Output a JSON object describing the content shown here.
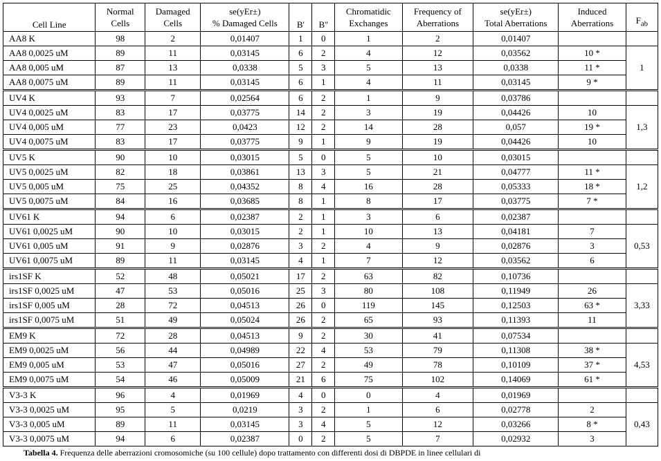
{
  "columns": {
    "cell_line": "Cell  Line",
    "normal": "Normal\nCells",
    "damaged": "Damaged\nCells",
    "se_damaged": "se(yEr±)\n% Damaged Cells",
    "bprime": "B'",
    "bdprime": "B''",
    "chrom_ex": "Chromatidic\nExchanges",
    "freq_ab": "Frequency of\nAberrations",
    "se_total": "se(yEr±)\nTotal Aberrations",
    "induced": "Induced\nAberrations",
    "fab": "Fab"
  },
  "col_widths": {
    "cell_line": 130,
    "normal": 70,
    "damaged": 78,
    "se_damaged": 125,
    "bprime": 32,
    "bdprime": 32,
    "chrom_ex": 95,
    "freq_ab": 100,
    "se_total": 120,
    "induced": 95,
    "fab": 45
  },
  "groups": [
    {
      "fab": "1",
      "rows": [
        {
          "cl": "AA8 K",
          "n": "98",
          "d": "2",
          "se": "0,01407",
          "b1": "1",
          "b2": "0",
          "cx": "1",
          "fa": "2",
          "st": "0,01407",
          "ia": ""
        },
        {
          "cl": "AA8 0,0025 uM",
          "n": "89",
          "d": "11",
          "se": "0,03145",
          "b1": "6",
          "b2": "2",
          "cx": "4",
          "fa": "12",
          "st": "0,03562",
          "ia": "10 *"
        },
        {
          "cl": "AA8 0,005 uM",
          "n": "87",
          "d": "13",
          "se": "0,0338",
          "b1": "5",
          "b2": "3",
          "cx": "5",
          "fa": "13",
          "st": "0,0338",
          "ia": "11 *"
        },
        {
          "cl": "AA8 0,0075 uM",
          "n": "89",
          "d": "11",
          "se": "0,03145",
          "b1": "6",
          "b2": "1",
          "cx": "4",
          "fa": "11",
          "st": "0,03145",
          "ia": "9 *"
        }
      ]
    },
    {
      "fab": "1,3",
      "rows": [
        {
          "cl": "UV4 K",
          "n": "93",
          "d": "7",
          "se": "0,02564",
          "b1": "6",
          "b2": "2",
          "cx": "1",
          "fa": "9",
          "st": "0,03786",
          "ia": ""
        },
        {
          "cl": "UV4 0,0025 uM",
          "n": "83",
          "d": "17",
          "se": "0,03775",
          "b1": "14",
          "b2": "2",
          "cx": "3",
          "fa": "19",
          "st": "0,04426",
          "ia": "10"
        },
        {
          "cl": "UV4 0,005 uM",
          "n": "77",
          "d": "23",
          "se": "0,0423",
          "b1": "12",
          "b2": "2",
          "cx": "14",
          "fa": "28",
          "st": "0,057",
          "ia": "19 *"
        },
        {
          "cl": "UV4 0,0075 uM",
          "n": "83",
          "d": "17",
          "se": "0,03775",
          "b1": "9",
          "b2": "1",
          "cx": "9",
          "fa": "19",
          "st": "0,04426",
          "ia": "10"
        }
      ]
    },
    {
      "fab": "1,2",
      "rows": [
        {
          "cl": "UV5 K",
          "n": "90",
          "d": "10",
          "se": "0,03015",
          "b1": "5",
          "b2": "0",
          "cx": "5",
          "fa": "10",
          "st": "0,03015",
          "ia": ""
        },
        {
          "cl": "UV5 0,0025 uM",
          "n": "82",
          "d": "18",
          "se": "0,03861",
          "b1": "13",
          "b2": "3",
          "cx": "5",
          "fa": "21",
          "st": "0,04777",
          "ia": "11 *"
        },
        {
          "cl": "UV5 0,005 uM",
          "n": "75",
          "d": "25",
          "se": "0,04352",
          "b1": "8",
          "b2": "4",
          "cx": "16",
          "fa": "28",
          "st": "0,05333",
          "ia": "18 *"
        },
        {
          "cl": "UV5 0,0075 uM",
          "n": "84",
          "d": "16",
          "se": "0,03685",
          "b1": "8",
          "b2": "1",
          "cx": "8",
          "fa": "17",
          "st": "0,03775",
          "ia": "7 *"
        }
      ]
    },
    {
      "fab": "0,53",
      "rows": [
        {
          "cl": "UV61 K",
          "n": "94",
          "d": "6",
          "se": "0,02387",
          "b1": "2",
          "b2": "1",
          "cx": "3",
          "fa": "6",
          "st": "0,02387",
          "ia": ""
        },
        {
          "cl": "UV61 0,0025 uM",
          "n": "90",
          "d": "10",
          "se": "0,03015",
          "b1": "2",
          "b2": "1",
          "cx": "10",
          "fa": "13",
          "st": "0,04181",
          "ia": "7"
        },
        {
          "cl": "UV61 0,005 uM",
          "n": "91",
          "d": "9",
          "se": "0,02876",
          "b1": "3",
          "b2": "2",
          "cx": "4",
          "fa": "9",
          "st": "0,02876",
          "ia": "3"
        },
        {
          "cl": "UV61 0,0075 uM",
          "n": "89",
          "d": "11",
          "se": "0,03145",
          "b1": "4",
          "b2": "1",
          "cx": "7",
          "fa": "12",
          "st": "0,03562",
          "ia": "6"
        }
      ]
    },
    {
      "fab": "3,33",
      "rows": [
        {
          "cl": "irs1SF K",
          "n": "52",
          "d": "48",
          "se": "0,05021",
          "b1": "17",
          "b2": "2",
          "cx": "63",
          "fa": "82",
          "st": "0,10736",
          "ia": ""
        },
        {
          "cl": "irs1SF 0,0025 uM",
          "n": "47",
          "d": "53",
          "se": "0,05016",
          "b1": "25",
          "b2": "3",
          "cx": "80",
          "fa": "108",
          "st": "0,11949",
          "ia": "26"
        },
        {
          "cl": "irs1SF 0,005 uM",
          "n": "28",
          "d": "72",
          "se": "0,04513",
          "b1": "26",
          "b2": "0",
          "cx": "119",
          "fa": "145",
          "st": "0,12503",
          "ia": "63 *"
        },
        {
          "cl": "irs1SF 0,0075 uM",
          "n": "51",
          "d": "49",
          "se": "0,05024",
          "b1": "26",
          "b2": "2",
          "cx": "65",
          "fa": "93",
          "st": "0,11393",
          "ia": "11"
        }
      ]
    },
    {
      "fab": "4,53",
      "rows": [
        {
          "cl": "EM9 K",
          "n": "72",
          "d": "28",
          "se": "0,04513",
          "b1": "9",
          "b2": "2",
          "cx": "30",
          "fa": "41",
          "st": "0,07534",
          "ia": ""
        },
        {
          "cl": "EM9 0,0025 uM",
          "n": "56",
          "d": "44",
          "se": "0,04989",
          "b1": "22",
          "b2": "4",
          "cx": "53",
          "fa": "79",
          "st": "0,11308",
          "ia": "38  *"
        },
        {
          "cl": "EM9 0,005 uM",
          "n": "53",
          "d": "47",
          "se": "0,05016",
          "b1": "27",
          "b2": "2",
          "cx": "49",
          "fa": "78",
          "st": "0,10109",
          "ia": "37  *"
        },
        {
          "cl": "EM9 0,0075 uM",
          "n": "54",
          "d": "46",
          "se": "0,05009",
          "b1": "21",
          "b2": "6",
          "cx": "75",
          "fa": "102",
          "st": "0,14069",
          "ia": "61  *"
        }
      ]
    },
    {
      "fab": "0,43",
      "rows": [
        {
          "cl": "V3-3 K",
          "n": "96",
          "d": "4",
          "se": "0,01969",
          "b1": "4",
          "b2": "0",
          "cx": "0",
          "fa": "4",
          "st": "0,01969",
          "ia": ""
        },
        {
          "cl": "V3-3 0,0025 uM",
          "n": "95",
          "d": "5",
          "se": "0,0219",
          "b1": "3",
          "b2": "2",
          "cx": "1",
          "fa": "6",
          "st": "0,02778",
          "ia": "2"
        },
        {
          "cl": "V3-3 0,005 uM",
          "n": "89",
          "d": "11",
          "se": "0,03145",
          "b1": "3",
          "b2": "4",
          "cx": "5",
          "fa": "12",
          "st": "0,03266",
          "ia": "8 *"
        },
        {
          "cl": "V3-3 0,0075 uM",
          "n": "94",
          "d": "6",
          "se": "0,02387",
          "b1": "0",
          "b2": "2",
          "cx": "5",
          "fa": "7",
          "st": "0,02932",
          "ia": "3"
        }
      ]
    }
  ],
  "caption_bold": "Tabella 4.",
  "caption_rest": " Frequenza delle aberrazioni cromosomiche (su 100 cellule) dopo trattamento con differenti dosi di DBPDE in linee cellulari di"
}
